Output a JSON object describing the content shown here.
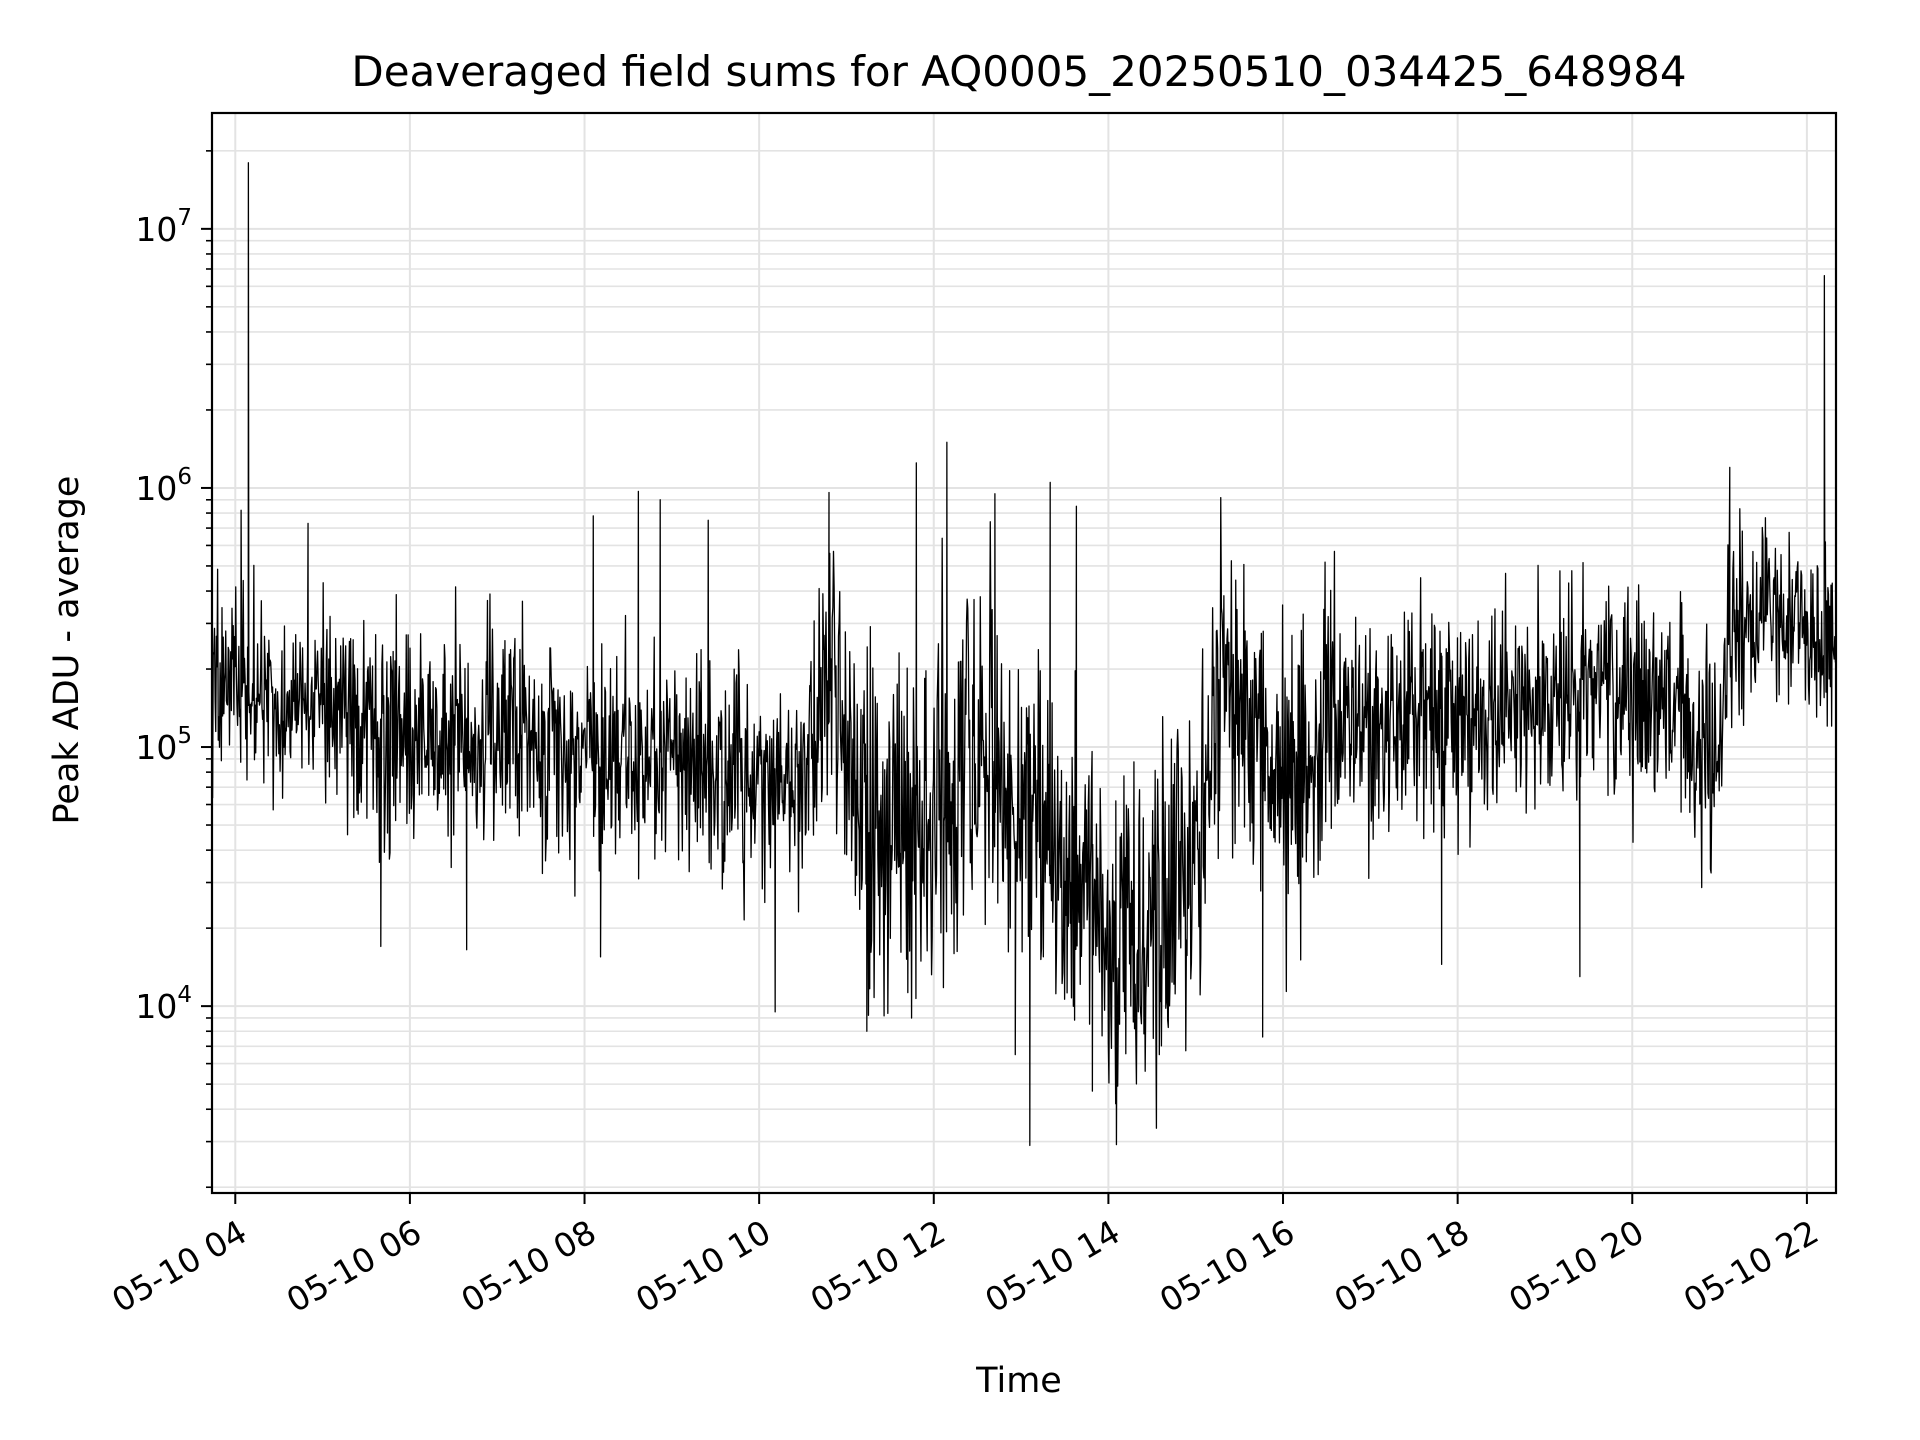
{
  "chart_data": {
    "type": "line",
    "title": "Deaveraged field sums for AQ0005_20250510_034425_648984",
    "xlabel": "Time",
    "ylabel": "Peak ADU - average",
    "x_date_prefix": "2025-05-10",
    "xlim": [
      "2025-05-10 03:44",
      "2025-05-10 22:20"
    ],
    "x_tick_values": [
      "2025-05-10 04:00",
      "2025-05-10 06:00",
      "2025-05-10 08:00",
      "2025-05-10 10:00",
      "2025-05-10 12:00",
      "2025-05-10 14:00",
      "2025-05-10 16:00",
      "2025-05-10 18:00",
      "2025-05-10 20:00",
      "2025-05-10 22:00"
    ],
    "x_ticks": [
      "05-10 04",
      "05-10 06",
      "05-10 08",
      "05-10 10",
      "05-10 12",
      "05-10 14",
      "05-10 16",
      "05-10 18",
      "05-10 20",
      "05-10 22"
    ],
    "y_scale": "log",
    "ylim": [
      1900,
      28000000
    ],
    "y_ticks": [
      {
        "value": 10000,
        "base": "10",
        "exp": "4"
      },
      {
        "value": 100000,
        "base": "10",
        "exp": "5"
      },
      {
        "value": 1000000,
        "base": "10",
        "exp": "6"
      },
      {
        "value": 10000000,
        "base": "10",
        "exp": "7"
      }
    ],
    "grid": true,
    "colors": {
      "line": "#000000",
      "grid": "#e3e3e3",
      "axes": "#000000"
    },
    "series": [
      {
        "x": [
          "2025-05-10 03:44",
          "2025-05-10 03:55",
          "2025-05-10 04:06",
          "2025-05-10 04:30",
          "2025-05-10 05:00",
          "2025-05-10 05:30",
          "2025-05-10 06:00",
          "2025-05-10 06:30",
          "2025-05-10 07:00",
          "2025-05-10 07:30",
          "2025-05-10 08:00",
          "2025-05-10 08:30",
          "2025-05-10 09:00",
          "2025-05-10 09:30",
          "2025-05-10 10:00",
          "2025-05-10 10:30",
          "2025-05-10 10:50",
          "2025-05-10 11:10",
          "2025-05-10 11:30",
          "2025-05-10 12:00",
          "2025-05-10 12:30",
          "2025-05-10 13:00",
          "2025-05-10 13:30",
          "2025-05-10 14:00",
          "2025-05-10 14:30",
          "2025-05-10 15:00",
          "2025-05-10 15:20",
          "2025-05-10 15:50",
          "2025-05-10 16:10",
          "2025-05-10 16:30",
          "2025-05-10 17:00",
          "2025-05-10 17:30",
          "2025-05-10 18:00",
          "2025-05-10 18:30",
          "2025-05-10 19:00",
          "2025-05-10 19:30",
          "2025-05-10 20:00",
          "2025-05-10 20:30",
          "2025-05-10 20:55",
          "2025-05-10 21:10",
          "2025-05-10 21:30",
          "2025-05-10 22:00",
          "2025-05-10 22:20"
        ],
        "values": [
          190000,
          180000,
          170000,
          150000,
          160000,
          130000,
          110000,
          105000,
          110000,
          100000,
          100000,
          95000,
          85000,
          80000,
          75000,
          75000,
          210000,
          45000,
          40000,
          55000,
          80000,
          70000,
          35000,
          20000,
          18000,
          40000,
          200000,
          90000,
          70000,
          110000,
          120000,
          140000,
          120000,
          150000,
          160000,
          170000,
          160000,
          150000,
          90000,
          260000,
          330000,
          280000,
          250000
        ],
        "spikes": [
          {
            "x": "2025-05-10 04:09",
            "y": 18000000
          },
          {
            "x": "2025-05-10 04:04",
            "y": 820000
          },
          {
            "x": "2025-05-10 04:50",
            "y": 730000
          },
          {
            "x": "2025-05-10 08:06",
            "y": 780000
          },
          {
            "x": "2025-05-10 08:37",
            "y": 970000
          },
          {
            "x": "2025-05-10 08:52",
            "y": 900000
          },
          {
            "x": "2025-05-10 09:25",
            "y": 750000
          },
          {
            "x": "2025-05-10 10:48",
            "y": 960000
          },
          {
            "x": "2025-05-10 11:48",
            "y": 1250000
          },
          {
            "x": "2025-05-10 12:09",
            "y": 1500000
          },
          {
            "x": "2025-05-10 12:42",
            "y": 950000
          },
          {
            "x": "2025-05-10 13:20",
            "y": 1050000
          },
          {
            "x": "2025-05-10 13:38",
            "y": 850000
          },
          {
            "x": "2025-05-10 21:07",
            "y": 1200000
          },
          {
            "x": "2025-05-10 22:12",
            "y": 6600000
          },
          {
            "x": "2025-05-10 13:06",
            "y": 2900
          },
          {
            "x": "2025-05-10 13:49",
            "y": 4700
          },
          {
            "x": "2025-05-10 14:05",
            "y": 4200
          },
          {
            "x": "2025-05-10 14:35",
            "y": 6500
          },
          {
            "x": "2025-05-10 12:56",
            "y": 6500
          },
          {
            "x": "2025-05-10 11:14",
            "y": 8000
          },
          {
            "x": "2025-05-10 15:46",
            "y": 7600
          },
          {
            "x": "2025-05-10 05:40",
            "y": 17000
          },
          {
            "x": "2025-05-10 06:39",
            "y": 16500
          },
          {
            "x": "2025-05-10 08:11",
            "y": 15500
          },
          {
            "x": "2025-05-10 10:11",
            "y": 9500
          },
          {
            "x": "2025-05-10 17:49",
            "y": 14500
          },
          {
            "x": "2025-05-10 19:24",
            "y": 13000
          }
        ]
      }
    ]
  }
}
